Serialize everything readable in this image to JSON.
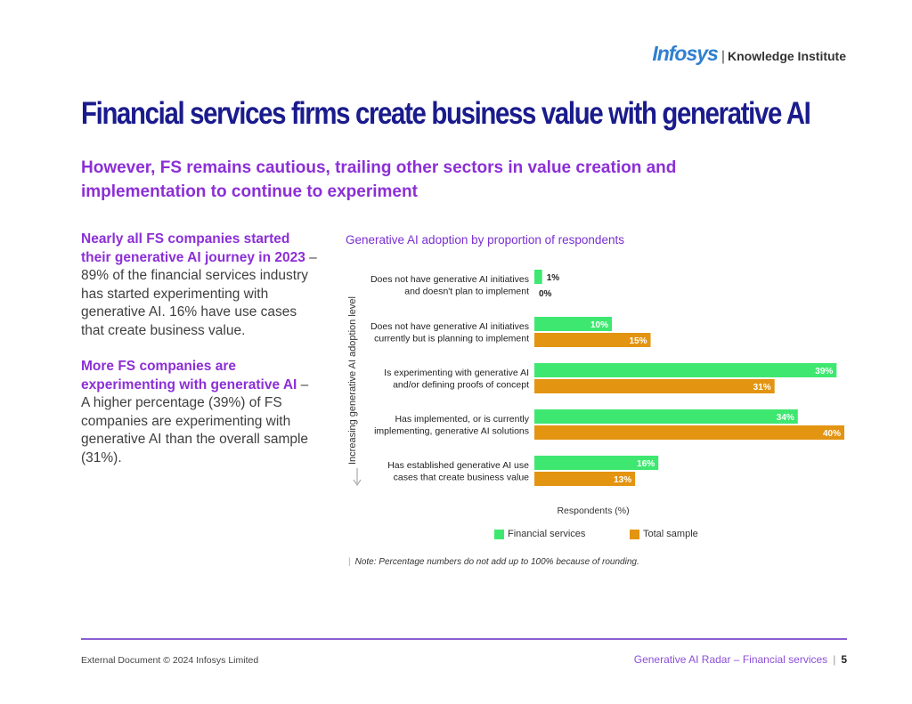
{
  "logo": {
    "brand": "Infosys",
    "sep": "|",
    "sub": "Knowledge Institute"
  },
  "title": "Financial services firms create business value with generative AI",
  "subtitle": "However, FS remains cautious, trailing other sectors in value creation and implementation to continue to experiment",
  "left": {
    "p1_highlight": "Nearly all FS companies started their generative AI journey in 2023",
    "p1_text": " – 89% of the financial services industry has started experimenting with generative AI. 16% have use cases that create business value.",
    "p2_highlight": "More FS companies are experimenting with generative AI",
    "p2_text": " – A higher percentage (39%) of FS companies are experimenting with generative AI than the overall sample (31%)."
  },
  "chart_title": "Generative AI adoption by proportion of respondents",
  "chart_data": {
    "type": "bar",
    "orientation": "horizontal",
    "categories": [
      [
        "Does not have generative AI initiatives",
        "and doesn't plan to implement"
      ],
      [
        "Does not have generative AI initiatives",
        "currently but is planning to implement"
      ],
      [
        "Is experimenting with generative AI",
        "and/or defining proofs of concept"
      ],
      [
        "Has implemented, or is currently",
        "implementing, generative AI solutions"
      ],
      [
        "Has established generative AI use",
        "cases that create business value"
      ]
    ],
    "series": [
      {
        "name": "Financial services",
        "color": "#3ee870",
        "values": [
          1,
          10,
          39,
          34,
          16
        ]
      },
      {
        "name": "Total sample",
        "color": "#e39410",
        "values": [
          0,
          15,
          31,
          40,
          13
        ]
      }
    ],
    "xlabel": "Respondents (%)",
    "ylabel": "Increasing generative AI adoption level",
    "xlim": [
      0,
      40
    ]
  },
  "note": {
    "marker": "|",
    "text": "Note: Percentage numbers do not add up to 100% because of rounding."
  },
  "footer": {
    "left": "External Document © 2024 Infosys Limited",
    "right": "Generative AI Radar – Financial services",
    "sep": "|",
    "page": "5"
  }
}
